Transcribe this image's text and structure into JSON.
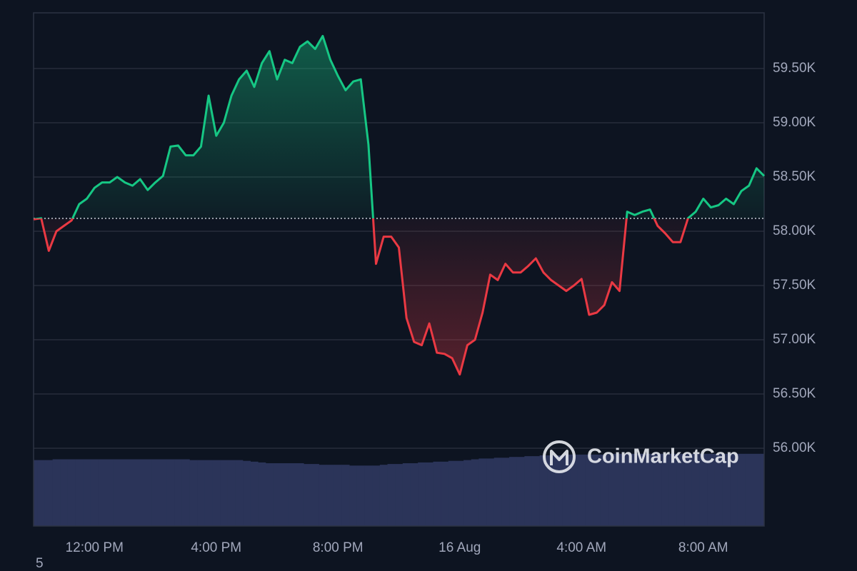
{
  "chart_data": {
    "type": "line",
    "watermark": "CoinMarketCap",
    "footnote": "5",
    "baseline": 58118,
    "up_color": "#16c784",
    "down_color": "#ea3943",
    "volume_color": "#2b3459",
    "xlim": [
      0,
      96
    ],
    "xticks": [
      {
        "value": 8,
        "label": "12:00 PM"
      },
      {
        "value": 24,
        "label": "4:00 PM"
      },
      {
        "value": 40,
        "label": "8:00 PM"
      },
      {
        "value": 56,
        "label": "16 Aug"
      },
      {
        "value": 72,
        "label": "4:00 AM"
      },
      {
        "value": 88,
        "label": "8:00 AM"
      }
    ],
    "ylim": [
      55283,
      60013
    ],
    "yticks": [
      {
        "value": 56000,
        "label": "56.00K"
      },
      {
        "value": 56500,
        "label": "56.50K"
      },
      {
        "value": 57000,
        "label": "57.00K"
      },
      {
        "value": 57500,
        "label": "57.50K"
      },
      {
        "value": 58000,
        "label": "58.00K"
      },
      {
        "value": 58500,
        "label": "58.50K"
      },
      {
        "value": 59000,
        "label": "59.00K"
      },
      {
        "value": 59500,
        "label": "59.50K"
      }
    ],
    "grid": true,
    "values": [
      58110,
      58120,
      57820,
      58000,
      58050,
      58100,
      58250,
      58300,
      58400,
      58450,
      58450,
      58500,
      58450,
      58420,
      58480,
      58380,
      58450,
      58510,
      58780,
      58790,
      58700,
      58700,
      58780,
      59250,
      58880,
      59000,
      59250,
      59400,
      59480,
      59330,
      59550,
      59660,
      59400,
      59580,
      59550,
      59700,
      59750,
      59680,
      59800,
      59580,
      59430,
      59300,
      59380,
      59400,
      58800,
      57700,
      57950,
      57950,
      57850,
      57200,
      56980,
      56950,
      57150,
      56880,
      56870,
      56830,
      56680,
      56950,
      57000,
      57250,
      57600,
      57550,
      57700,
      57620,
      57620,
      57680,
      57750,
      57620,
      57550,
      57500,
      57450,
      57500,
      57560,
      57230,
      57250,
      57320,
      57530,
      57450,
      58180,
      58150,
      58180,
      58200,
      58050,
      57980,
      57900,
      57900,
      58120,
      58180,
      58300,
      58220,
      58240,
      58300,
      58250,
      58370,
      58420,
      58580,
      58510
    ],
    "vlim": [
      0,
      100
    ],
    "volume": [
      84,
      84,
      84,
      85,
      85,
      85,
      85,
      85,
      85,
      85,
      85,
      85,
      85,
      85,
      85,
      85,
      85,
      85,
      85,
      85,
      85,
      84,
      84,
      84,
      84,
      84,
      84,
      84,
      83,
      82,
      81,
      80,
      80,
      80,
      80,
      80,
      79,
      79,
      78,
      78,
      78,
      78,
      77,
      77,
      77,
      77,
      78,
      79,
      79,
      80,
      80,
      81,
      81,
      82,
      82,
      83,
      83,
      84,
      85,
      86,
      86,
      87,
      87,
      88,
      88,
      89,
      89,
      90,
      90,
      90,
      91,
      91,
      91,
      91,
      91,
      91,
      92,
      92,
      92,
      92,
      92,
      92,
      92,
      92,
      92,
      92,
      92,
      92,
      92,
      92,
      92,
      92,
      92,
      92,
      92,
      92,
      92
    ]
  }
}
